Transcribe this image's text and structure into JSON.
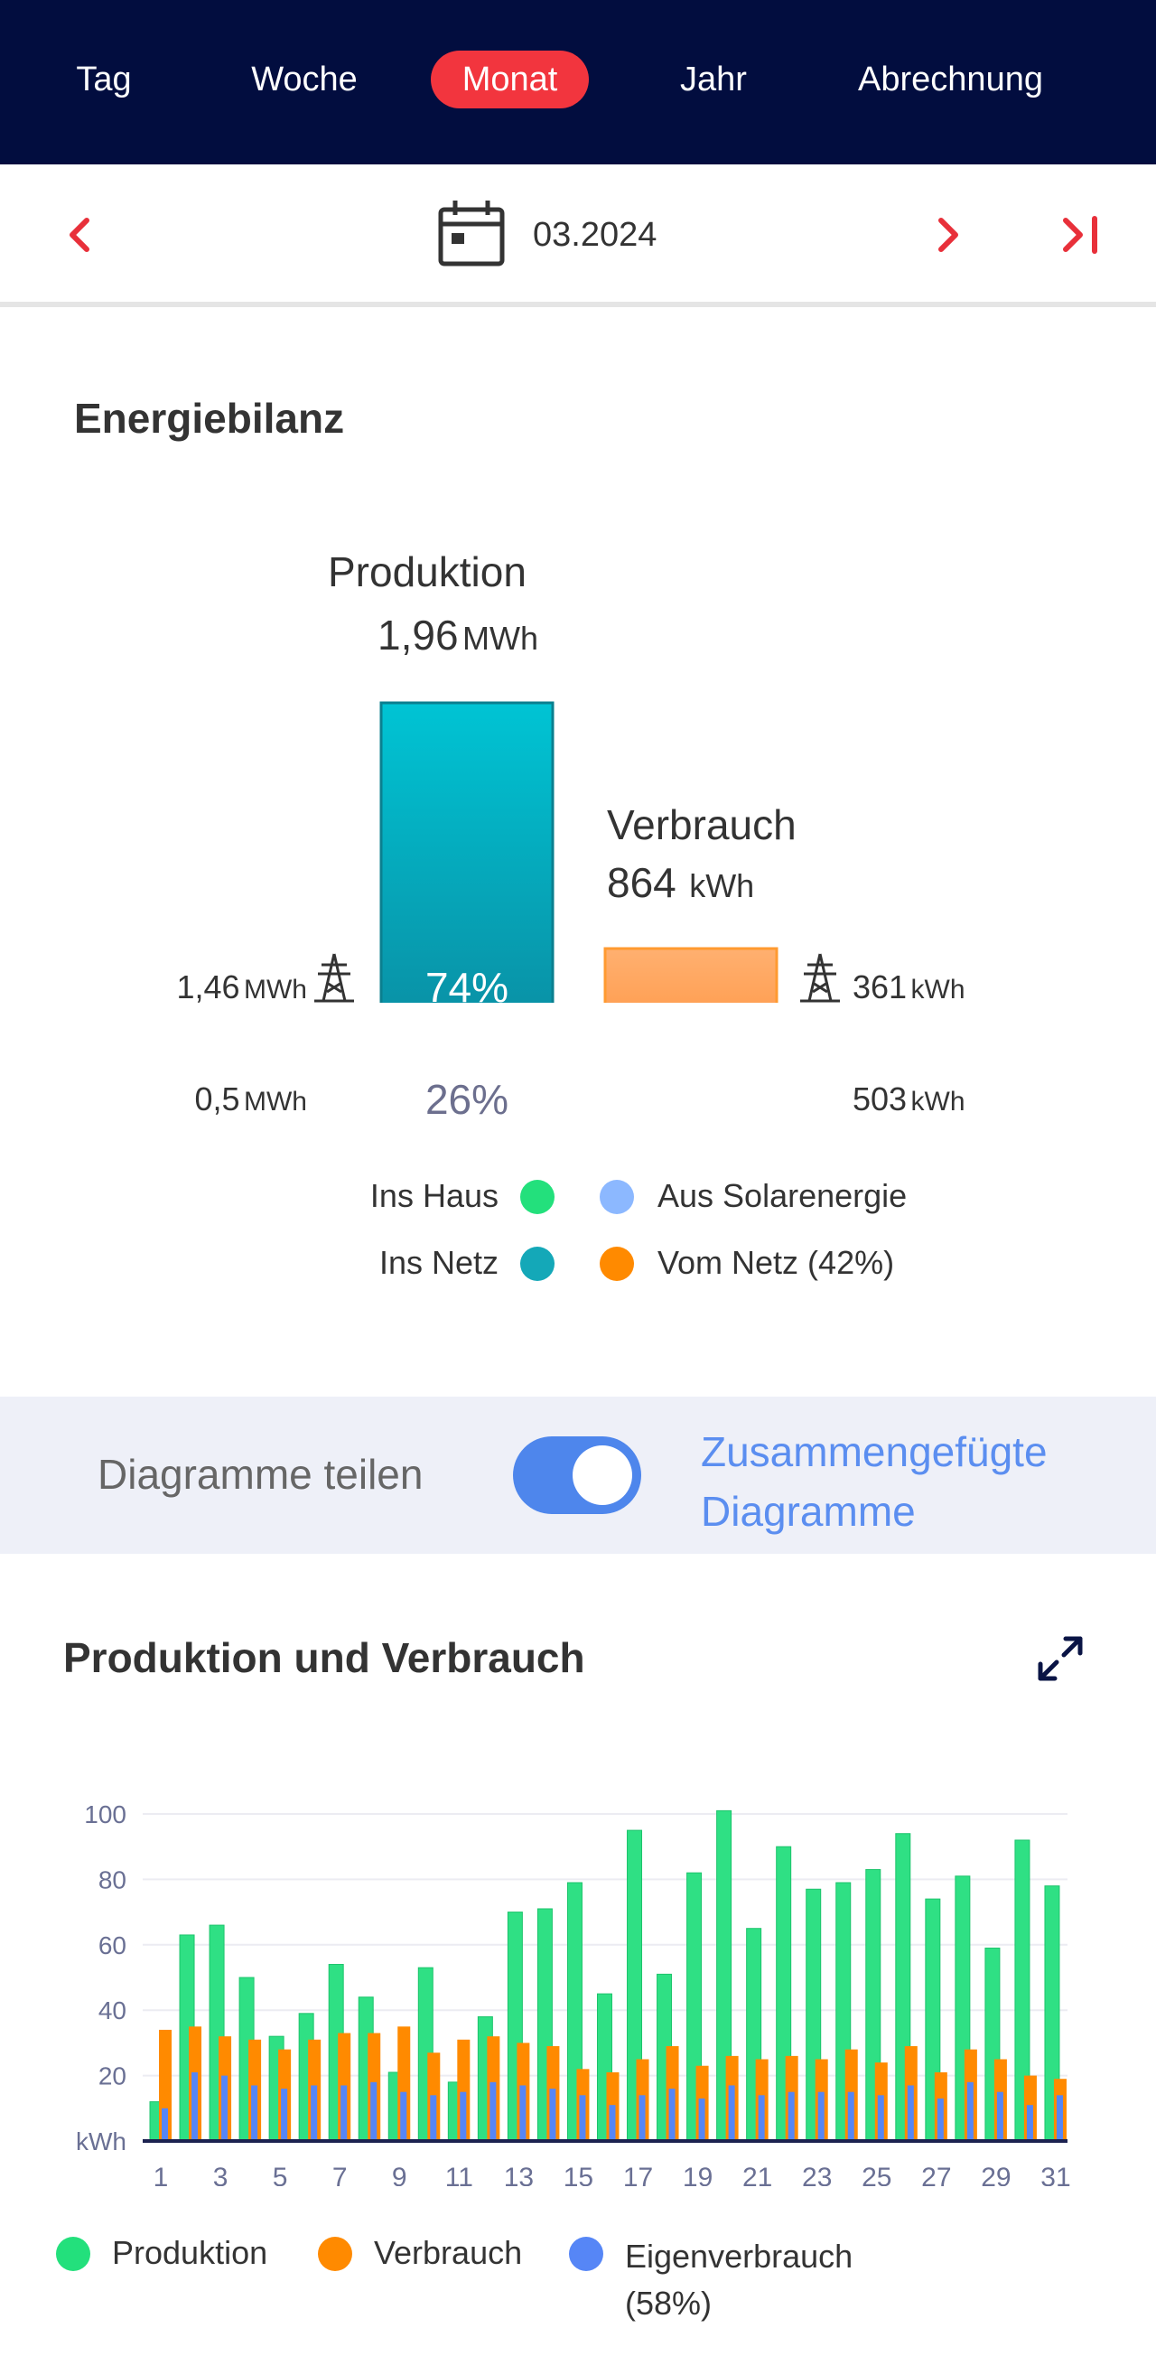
{
  "tabs": [
    {
      "label": "Tag",
      "active": false
    },
    {
      "label": "Woche",
      "active": false
    },
    {
      "label": "Monat",
      "active": true
    },
    {
      "label": "Jahr",
      "active": false
    },
    {
      "label": "Abrechnung",
      "active": false
    }
  ],
  "date": {
    "value": "03.2024"
  },
  "balance": {
    "title": "Energiebilanz",
    "production": {
      "label": "Produktion",
      "value": "1,96",
      "unit": "MWh",
      "grid_pct": "74%",
      "house_pct": "26%"
    },
    "consumption": {
      "label": "Verbrauch",
      "value": "864",
      "unit": "kWh",
      "solar_pct": "58%"
    },
    "left_grid": {
      "value": "1,46",
      "unit": "MWh"
    },
    "left_house": {
      "value": "0,5",
      "unit": "MWh"
    },
    "right_grid": {
      "value": "361",
      "unit": "kWh"
    },
    "right_solar": {
      "value": "503",
      "unit": "kWh"
    },
    "legend": {
      "ins_haus": "Ins Haus",
      "ins_netz": "Ins Netz",
      "aus_solar": "Aus Solarenergie",
      "vom_netz": "Vom Netz (42%)"
    }
  },
  "toggle": {
    "label": "Diagramme teilen",
    "alt_label": "Zusammengefügte Diagramme",
    "on": true
  },
  "chart_section": {
    "title": "Produktion und Verbrauch"
  },
  "chart_data": {
    "type": "bar",
    "ylabel": "kWh",
    "ylim": [
      0,
      100
    ],
    "yticks": [
      20,
      40,
      60,
      80,
      100
    ],
    "x": [
      1,
      2,
      3,
      4,
      5,
      6,
      7,
      8,
      9,
      10,
      11,
      12,
      13,
      14,
      15,
      16,
      17,
      18,
      19,
      20,
      21,
      22,
      23,
      24,
      25,
      26,
      27,
      28,
      29,
      30,
      31
    ],
    "xtick_labels": [
      "1",
      "3",
      "5",
      "7",
      "9",
      "11",
      "13",
      "15",
      "17",
      "19",
      "21",
      "23",
      "25",
      "27",
      "29",
      "31"
    ],
    "series": [
      {
        "name": "Produktion",
        "color": "#2fe084",
        "values": [
          12,
          63,
          66,
          50,
          32,
          39,
          54,
          44,
          21,
          53,
          18,
          38,
          70,
          71,
          79,
          45,
          95,
          51,
          82,
          101,
          65,
          90,
          77,
          79,
          83,
          94,
          74,
          81,
          59,
          92,
          78
        ]
      },
      {
        "name": "Verbrauch",
        "color": "#ff8a00",
        "values": [
          34,
          35,
          32,
          31,
          28,
          31,
          33,
          33,
          35,
          27,
          31,
          32,
          30,
          29,
          22,
          21,
          25,
          29,
          23,
          26,
          25,
          26,
          25,
          28,
          24,
          29,
          21,
          28,
          25,
          20,
          19
        ]
      },
      {
        "name": "Eigenverbrauch (58%)",
        "color": "#5686f6",
        "values": [
          10,
          21,
          20,
          17,
          16,
          17,
          17,
          18,
          15,
          14,
          15,
          18,
          17,
          16,
          14,
          11,
          14,
          16,
          13,
          17,
          14,
          15,
          15,
          15,
          14,
          17,
          13,
          18,
          15,
          11,
          14
        ]
      }
    ]
  }
}
